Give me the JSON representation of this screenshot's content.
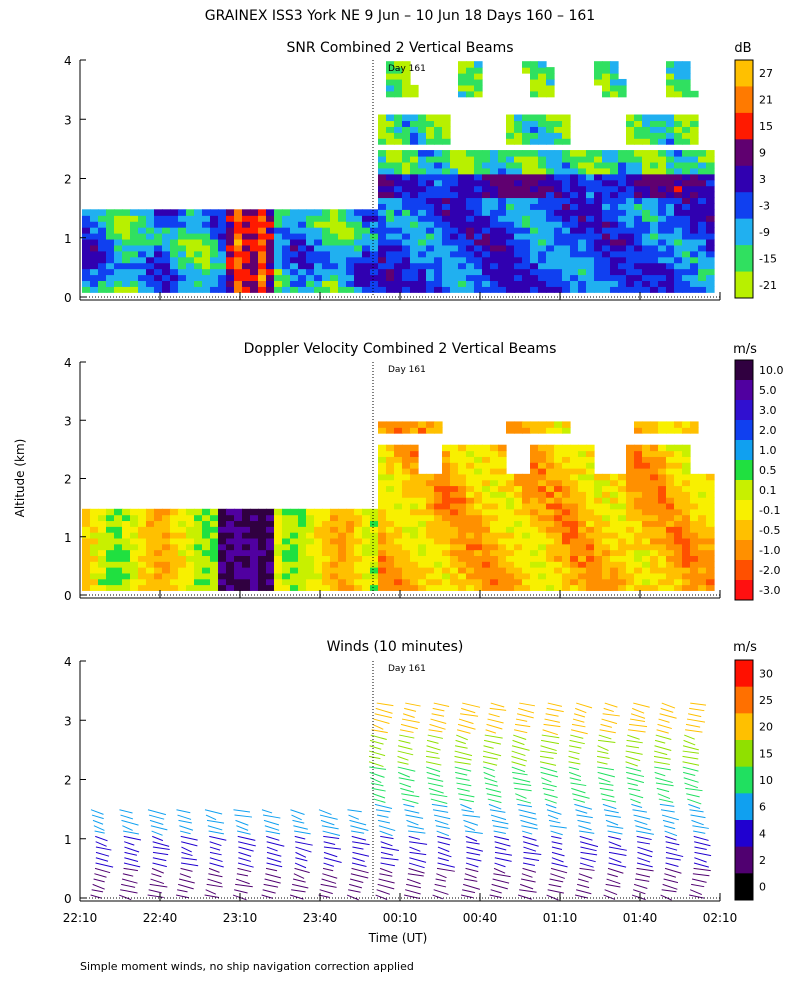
{
  "chart_data": [
    {
      "type": "heatmap",
      "title": "SNR Combined 2 Vertical Beams",
      "ylabel": "Altitude (km)",
      "ylim": [
        0,
        4
      ],
      "yticks": [
        "0",
        "1",
        "2",
        "3",
        "4"
      ],
      "day_label": "Day 161",
      "colorbar": {
        "unit": "dB",
        "labels": [
          "27",
          "21",
          "15",
          "9",
          "3",
          "-3",
          "-9",
          "-15",
          "-21"
        ]
      }
    },
    {
      "type": "heatmap",
      "title": "Doppler Velocity Combined 2 Vertical Beams",
      "ylabel": "Altitude (km)",
      "ylim": [
        0,
        4
      ],
      "yticks": [
        "0",
        "1",
        "2",
        "3",
        "4"
      ],
      "day_label": "Day 161",
      "colorbar": {
        "unit": "m/s",
        "labels": [
          "10.0",
          "5.0",
          "3.0",
          "2.0",
          "1.0",
          "0.5",
          "0.1",
          "-0.1",
          "-0.5",
          "-1.0",
          "-2.0",
          "-3.0"
        ]
      }
    },
    {
      "type": "scatter",
      "title": "Winds (10 minutes)",
      "ylabel": "Altitude (km)",
      "ylim": [
        0,
        4
      ],
      "yticks": [
        "0",
        "1",
        "2",
        "3",
        "4"
      ],
      "day_label": "Day 161",
      "xlabel": "Time (UT)",
      "xticks": [
        "22:10",
        "22:40",
        "23:10",
        "23:40",
        "00:10",
        "00:40",
        "01:10",
        "01:40",
        "02:10"
      ],
      "colorbar": {
        "unit": "m/s",
        "labels": [
          "30",
          "25",
          "20",
          "15",
          "10",
          "6",
          "4",
          "2",
          "0"
        ]
      }
    }
  ],
  "header": {
    "title": "GRAINEX ISS3 York NE   9 Jun – 10 Jun 18 Days 160 – 161"
  },
  "footer": {
    "note": "Simple moment winds, no ship navigation correction applied"
  },
  "colors": {
    "snr": [
      "#b8f000",
      "#30e060",
      "#20b0f0",
      "#1040f0",
      "#3000b0",
      "#600070",
      "#ff1a00",
      "#ff7a00",
      "#ffc000"
    ],
    "doppler": [
      "#ff1010",
      "#ff5000",
      "#ff9000",
      "#ffc000",
      "#f8f000",
      "#c8f000",
      "#20e040",
      "#10a0f0",
      "#1040f0",
      "#3010d0",
      "#5000a0",
      "#300040"
    ],
    "winds": [
      "#000000",
      "#500070",
      "#2000d0",
      "#10a0f0",
      "#20e060",
      "#90e000",
      "#ffc000",
      "#ff7000",
      "#ff1000"
    ]
  }
}
